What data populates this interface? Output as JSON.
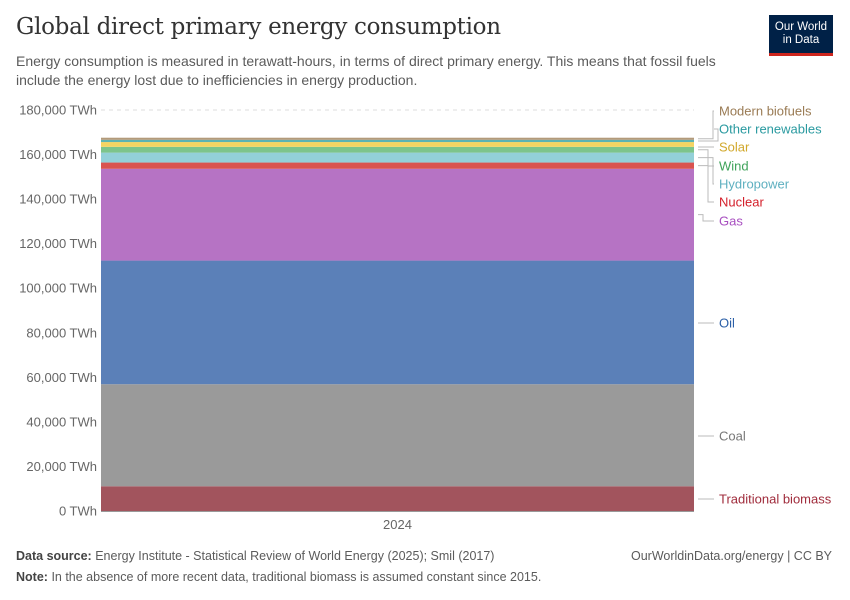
{
  "header": {
    "title": "Global direct primary energy consumption",
    "subtitle": "Energy consumption is measured in terawatt-hours, in terms of direct primary energy. This means that fossil fuels include the energy lost due to inefficiencies in energy production.",
    "logo_line1": "Our World",
    "logo_line2": "in Data"
  },
  "chart_data": {
    "type": "bar",
    "stacked": true,
    "categories": [
      "2024"
    ],
    "ylim": [
      0,
      180000
    ],
    "yticks": [
      0,
      20000,
      40000,
      60000,
      80000,
      100000,
      120000,
      140000,
      160000,
      180000
    ],
    "ytick_labels": [
      "0 TWh",
      "20,000 TWh",
      "40,000 TWh",
      "60,000 TWh",
      "80,000 TWh",
      "100,000 TWh",
      "120,000 TWh",
      "140,000 TWh",
      "160,000 TWh",
      "180,000 TWh"
    ],
    "grid": true,
    "legend": "right (inline labels)",
    "series": [
      {
        "name": "Traditional biomass",
        "values": [
          11111
        ],
        "color": "#a2545d",
        "label_color": "#a02c3c"
      },
      {
        "name": "Coal",
        "values": [
          45800
        ],
        "color": "#9a9a9a",
        "label_color": "#777777"
      },
      {
        "name": "Oil",
        "values": [
          55500
        ],
        "color": "#5b80b8",
        "label_color": "#2b5fa7"
      },
      {
        "name": "Gas",
        "values": [
          41200
        ],
        "color": "#b673c4",
        "label_color": "#a84fc0"
      },
      {
        "name": "Nuclear",
        "values": [
          2800
        ],
        "color": "#d9534f",
        "label_color": "#d4202b"
      },
      {
        "name": "Hydropower",
        "values": [
          4450
        ],
        "color": "#93d0d8",
        "label_color": "#5fb0c0"
      },
      {
        "name": "Wind",
        "values": [
          2600
        ],
        "color": "#7dc48b",
        "label_color": "#3fa35a"
      },
      {
        "name": "Solar",
        "values": [
          2150
        ],
        "color": "#f5d462",
        "label_color": "#d1a82b"
      },
      {
        "name": "Other renewables",
        "values": [
          1000
        ],
        "color": "#5cb3b3",
        "label_color": "#2a9aa0"
      },
      {
        "name": "Modern biofuels",
        "values": [
          950
        ],
        "color": "#b39a7a",
        "label_color": "#9a7b54"
      }
    ]
  },
  "footer": {
    "source_label": "Data source:",
    "source": "Energy Institute - Statistical Review of World Energy (2025); Smil (2017)",
    "note_label": "Note:",
    "note": "In the absence of more recent data, traditional biomass is assumed constant since 2015.",
    "credit": "OurWorldinData.org/energy | CC BY"
  }
}
